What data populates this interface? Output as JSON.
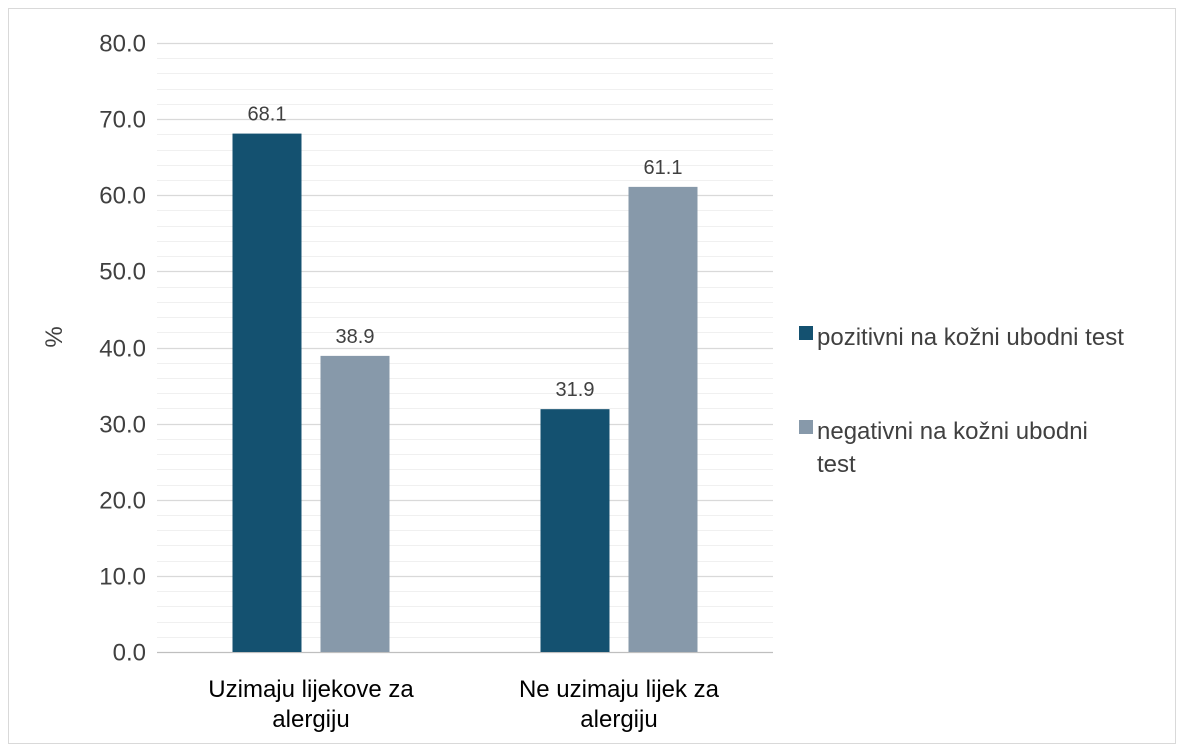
{
  "chart_data": {
    "type": "bar",
    "title": "",
    "xlabel": "",
    "ylabel": "%",
    "ylim": [
      0,
      80
    ],
    "yticks": [
      "0.0",
      "10.0",
      "20.0",
      "30.0",
      "40.0",
      "50.0",
      "60.0",
      "70.0",
      "80.0"
    ],
    "grid": true,
    "minor_grid": true,
    "legend_position": "right",
    "categories": [
      [
        "Uzimaju lijekove za",
        "alergiju"
      ],
      [
        "Ne uzimaju lijek za",
        "alergiju"
      ]
    ],
    "series": [
      {
        "name": [
          "pozitivni na kožni ubodni test"
        ],
        "color": "#145170",
        "values": [
          68.1,
          31.9
        ],
        "labels": [
          "68.1",
          "31.9"
        ]
      },
      {
        "name": [
          "negativni na kožni ubodni",
          "test"
        ],
        "color": "#8799aa",
        "values": [
          38.9,
          61.1
        ],
        "labels": [
          "38.9",
          "61.1"
        ]
      }
    ]
  }
}
